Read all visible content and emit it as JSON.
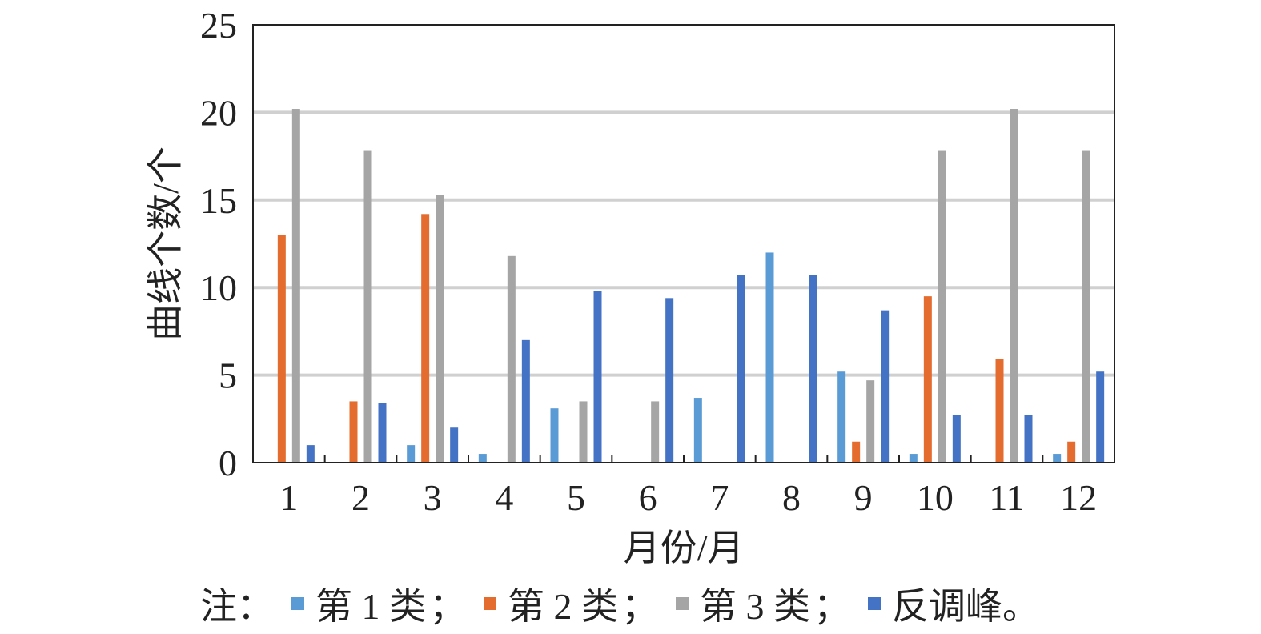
{
  "chart_data": {
    "type": "bar",
    "categories": [
      "1",
      "2",
      "3",
      "4",
      "5",
      "6",
      "7",
      "8",
      "9",
      "10",
      "11",
      "12"
    ],
    "series": [
      {
        "name": "第 1 类",
        "color": "#5b9bd5",
        "values": [
          0,
          0,
          1,
          0.5,
          3.1,
          0,
          3.7,
          12,
          5.2,
          0.5,
          0,
          0.5
        ]
      },
      {
        "name": "第 2 类",
        "color": "#e46c2f",
        "values": [
          13,
          3.5,
          14.2,
          0,
          0,
          0,
          0,
          0,
          1.2,
          9.5,
          5.9,
          1.2
        ]
      },
      {
        "name": "第 3 类",
        "color": "#a5a5a5",
        "values": [
          20.2,
          17.8,
          15.3,
          11.8,
          3.5,
          3.5,
          0,
          0,
          4.7,
          17.8,
          20.2,
          17.8
        ]
      },
      {
        "name": "反调峰",
        "color": "#4472c4",
        "values": [
          1,
          3.4,
          2,
          7,
          9.8,
          9.4,
          10.7,
          10.7,
          8.7,
          2.7,
          2.7,
          5.2
        ]
      }
    ],
    "xlabel": "月份/月",
    "ylabel": "曲线个数/个",
    "ylim": [
      0,
      25
    ],
    "yticks": [
      "0",
      "5",
      "10",
      "15",
      "20",
      "25"
    ],
    "grid": true
  },
  "legend": {
    "prefix": "注：",
    "sep": "；",
    "end": "。"
  }
}
